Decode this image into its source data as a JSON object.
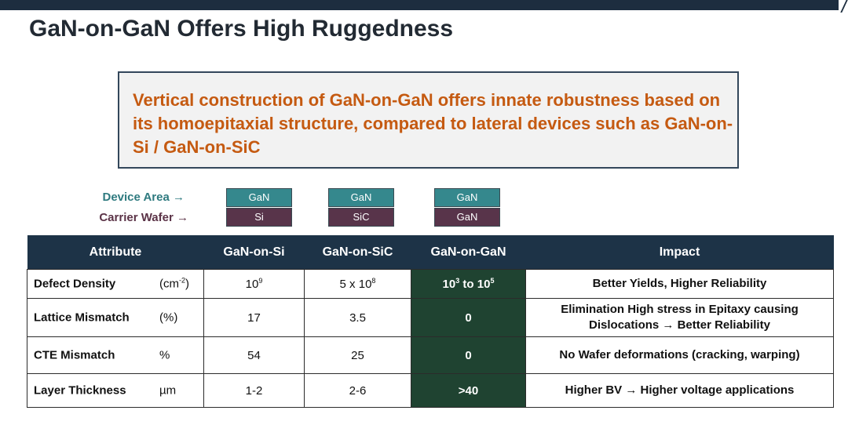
{
  "title": "GaN-on-GaN Offers High Ruggedness",
  "callout": {
    "text": "Vertical construction of GaN-on-GaN offers innate robustness based on its homoepitaxial structure, compared to lateral devices such as GaN-on-Si / GaN-on-SiC",
    "color": "#c55a11"
  },
  "stack_labels": {
    "device": "Device Area →",
    "carrier": "Carrier Wafer →"
  },
  "stacks": [
    {
      "top": "GaN",
      "bottom": "Si"
    },
    {
      "top": "GaN",
      "bottom": "SiC"
    },
    {
      "top": "GaN",
      "bottom": "GaN"
    }
  ],
  "table": {
    "headers": [
      "Attribute",
      "GaN-on-Si",
      "GaN-on-SiC",
      "GaN-on-GaN",
      "Impact"
    ],
    "rows": [
      {
        "name": "Defect Density",
        "unit_base": "(cm",
        "unit_sup": "-2",
        "unit_close": ")",
        "si": {
          "base": "10",
          "sup": "9"
        },
        "sic": {
          "base": "5 x 10",
          "sup": "8"
        },
        "gan": {
          "base1": "10",
          "sup1": "3",
          "mid": " to 10",
          "sup2": "5"
        },
        "impact": "Better Yields, Higher Reliability"
      },
      {
        "name": "Lattice Mismatch",
        "unit": "(%)",
        "si": "17",
        "sic": "3.5",
        "gan": "0",
        "impact_line1": "Elimination High stress in Epitaxy causing",
        "impact_line2": "Dislocations → Better Reliability"
      },
      {
        "name": "CTE Mismatch",
        "unit": "%",
        "si": "54",
        "sic": "25",
        "gan": "0",
        "impact": "No Wafer deformations (cracking, warping)"
      },
      {
        "name": "Layer Thickness",
        "unit": "µm",
        "si": "1-2",
        "sic": "2-6",
        "gan": ">40",
        "impact": "Higher BV → Higher voltage applications"
      }
    ]
  },
  "colors": {
    "header_bg": "#1d3347",
    "highlight_bg": "#1f4331",
    "device_chip": "#35888d",
    "carrier_chip": "#58344a"
  }
}
